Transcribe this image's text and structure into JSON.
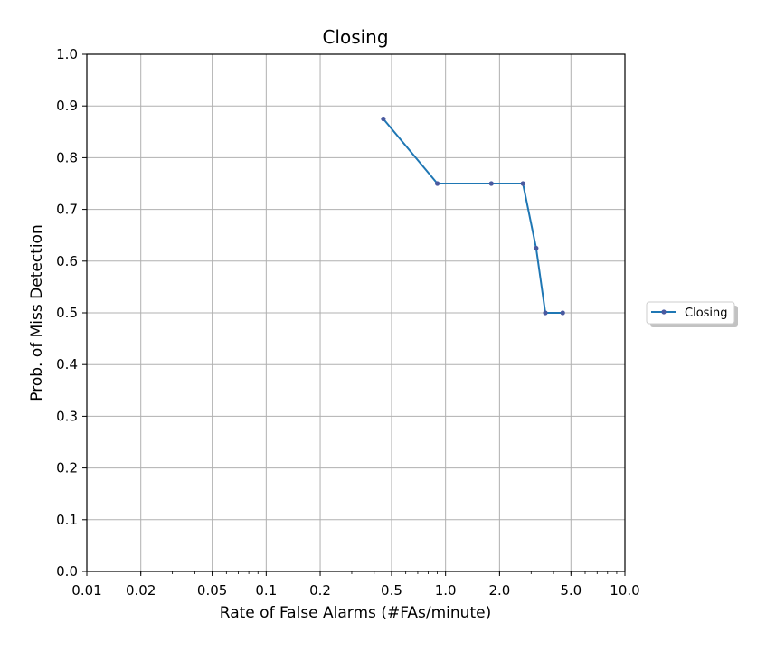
{
  "chart_data": {
    "type": "line",
    "title": "Closing",
    "xlabel": "Rate of False Alarms (#FAs/minute)",
    "ylabel": "Prob. of Miss Detection",
    "xscale": "log",
    "xlim": [
      0.01,
      10.0
    ],
    "ylim": [
      0.0,
      1.0
    ],
    "x_ticks": [
      {
        "value": 0.01,
        "label": "0.01"
      },
      {
        "value": 0.02,
        "label": "0.02"
      },
      {
        "value": 0.05,
        "label": "0.05"
      },
      {
        "value": 0.1,
        "label": "0.1"
      },
      {
        "value": 0.2,
        "label": "0.2"
      },
      {
        "value": 0.5,
        "label": "0.5"
      },
      {
        "value": 1.0,
        "label": "1.0"
      },
      {
        "value": 2.0,
        "label": "2.0"
      },
      {
        "value": 5.0,
        "label": "5.0"
      },
      {
        "value": 10.0,
        "label": "10.0"
      }
    ],
    "y_ticks": [
      {
        "value": 0.0,
        "label": "0.0"
      },
      {
        "value": 0.1,
        "label": "0.1"
      },
      {
        "value": 0.2,
        "label": "0.2"
      },
      {
        "value": 0.3,
        "label": "0.3"
      },
      {
        "value": 0.4,
        "label": "0.4"
      },
      {
        "value": 0.5,
        "label": "0.5"
      },
      {
        "value": 0.6,
        "label": "0.6"
      },
      {
        "value": 0.7,
        "label": "0.7"
      },
      {
        "value": 0.8,
        "label": "0.8"
      },
      {
        "value": 0.9,
        "label": "0.9"
      },
      {
        "value": 1.0,
        "label": "1.0"
      }
    ],
    "grid": true,
    "legend_position": "outside-right",
    "series": [
      {
        "name": "Closing",
        "color": "#1f77b4",
        "marker_color": "#4a5aa0",
        "x": [
          0.45,
          0.9,
          1.8,
          2.7,
          3.2,
          3.6,
          4.5
        ],
        "y": [
          0.875,
          0.75,
          0.75,
          0.75,
          0.625,
          0.5,
          0.5
        ]
      }
    ]
  }
}
